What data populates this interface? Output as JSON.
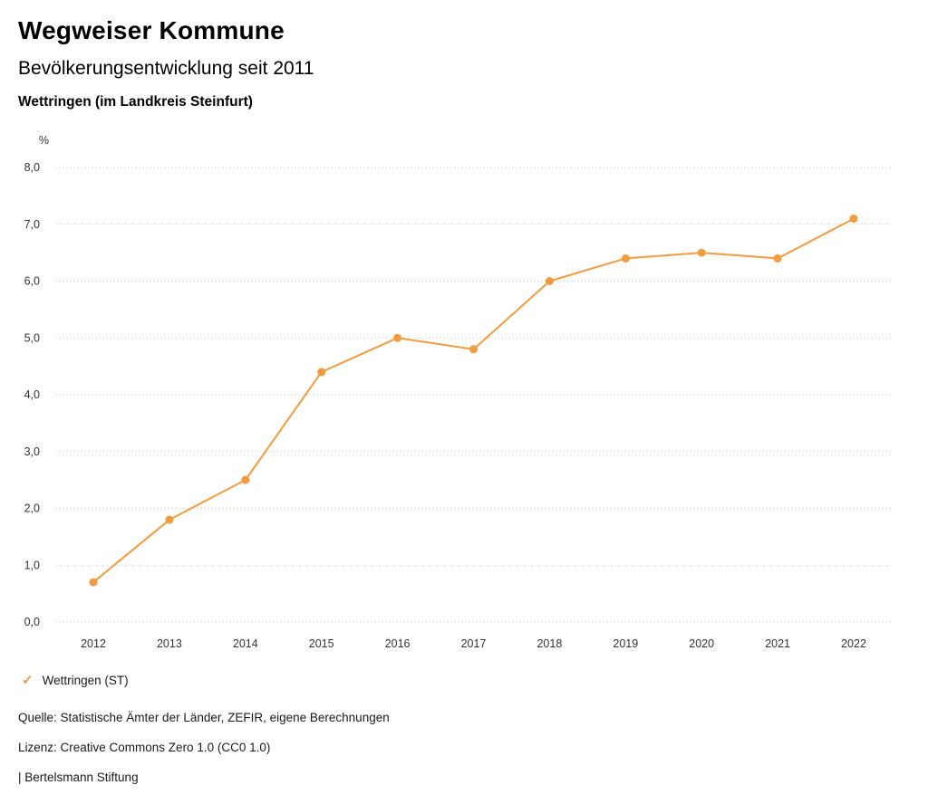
{
  "header": {
    "title": "Wegweiser Kommune",
    "subtitle": "Bevölkerungsentwicklung seit 2011",
    "region": "Wettringen (im Landkreis Steinfurt)"
  },
  "chart_data": {
    "type": "line",
    "title": "Bevölkerungsentwicklung seit 2011",
    "unit_label": "%",
    "x": [
      2012,
      2013,
      2014,
      2015,
      2016,
      2017,
      2018,
      2019,
      2020,
      2021,
      2022
    ],
    "series": [
      {
        "name": "Wettringen (ST)",
        "color": "#F39B3F",
        "values": [
          0.7,
          1.8,
          2.5,
          4.4,
          5.0,
          4.8,
          6.0,
          6.4,
          6.5,
          6.4,
          7.1
        ]
      }
    ],
    "ylim": [
      0,
      8
    ],
    "ytick_step": 1,
    "ytick_labels": [
      "0,0",
      "1,0",
      "2,0",
      "3,0",
      "4,0",
      "5,0",
      "6,0",
      "7,0",
      "8,0"
    ],
    "grid": "dotted-horizontal",
    "legend_position": "bottom-left",
    "marker": "circle"
  },
  "legend": {
    "items": [
      {
        "label": "Wettringen (ST)",
        "color": "#F39B3F",
        "marker": "check"
      }
    ]
  },
  "footer": {
    "source": "Quelle: Statistische Ämter der Länder, ZEFIR, eigene Berechnungen",
    "license": "Lizenz: Creative Commons Zero 1.0 (CC0 1.0)",
    "attribution": "| Bertelsmann Stiftung"
  }
}
